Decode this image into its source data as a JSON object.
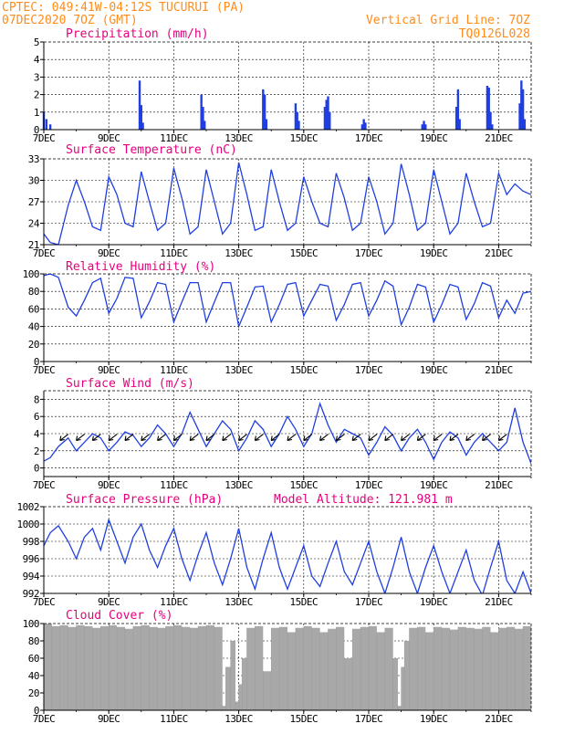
{
  "header": {
    "line1_left": "CPTEC:  049:41W-04:12S  TUCURUI (PA)",
    "line2_left": "07DEC2020 7OZ (GMT)",
    "line1_right": "Vertical Grid Line: 7OZ",
    "line2_right": "TQ0126L028",
    "colors": {
      "header": "#ff8c1a",
      "title": "#e6007e",
      "series": "#1f3fe0",
      "cloud": "#a8a8a8"
    }
  },
  "chart_data": [
    {
      "id": "precip",
      "type": "bar",
      "title": "Precipitation (mm/h)",
      "ylim": [
        0,
        5
      ],
      "yticks": [
        0,
        1,
        2,
        3,
        4,
        5
      ],
      "xlim": [
        7,
        22
      ],
      "xticks": [
        7,
        9,
        11,
        13,
        15,
        17,
        19,
        21
      ],
      "xtick_labels": [
        "7DEC",
        "9DEC",
        "11DEC",
        "13DEC",
        "15DEC",
        "17DEC",
        "19DEC",
        "21DEC"
      ],
      "x": [
        7.0,
        7.08,
        7.2,
        9.95,
        10.0,
        10.05,
        11.85,
        11.9,
        11.95,
        13.75,
        13.8,
        13.85,
        14.75,
        14.8,
        14.85,
        15.65,
        15.7,
        15.75,
        15.8,
        16.8,
        16.85,
        16.9,
        18.65,
        18.7,
        18.75,
        19.7,
        19.75,
        19.8,
        20.65,
        20.7,
        20.75,
        20.8,
        21.65,
        21.7,
        21.75,
        21.8
      ],
      "values": [
        1.0,
        0.6,
        0.3,
        2.8,
        1.4,
        0.4,
        2.0,
        1.3,
        0.5,
        2.3,
        2.0,
        0.6,
        1.5,
        1.0,
        0.5,
        1.3,
        1.7,
        1.9,
        1.0,
        0.3,
        0.6,
        0.4,
        0.3,
        0.5,
        0.3,
        1.3,
        2.3,
        0.6,
        2.5,
        2.4,
        1.0,
        0.3,
        1.5,
        2.8,
        2.3,
        0.6
      ]
    },
    {
      "id": "temp",
      "type": "line",
      "title": "Surface Temperature (nC)",
      "ylim": [
        21,
        33
      ],
      "yticks": [
        21,
        24,
        27,
        30,
        33
      ],
      "xlim": [
        7,
        22
      ],
      "xticks": [
        7,
        9,
        11,
        13,
        15,
        17,
        19,
        21
      ],
      "xtick_labels": [
        "7DEC",
        "9DEC",
        "11DEC",
        "13DEC",
        "15DEC",
        "17DEC",
        "19DEC",
        "21DEC"
      ],
      "x": [
        7.0,
        7.2,
        7.45,
        7.75,
        8.0,
        8.25,
        8.5,
        8.75,
        9.0,
        9.25,
        9.5,
        9.75,
        10.0,
        10.25,
        10.5,
        10.75,
        11.0,
        11.25,
        11.5,
        11.75,
        12.0,
        12.25,
        12.5,
        12.75,
        13.0,
        13.25,
        13.5,
        13.75,
        14.0,
        14.25,
        14.5,
        14.75,
        15.0,
        15.25,
        15.5,
        15.75,
        16.0,
        16.25,
        16.5,
        16.75,
        17.0,
        17.25,
        17.5,
        17.75,
        18.0,
        18.25,
        18.5,
        18.75,
        19.0,
        19.25,
        19.5,
        19.75,
        20.0,
        20.25,
        20.5,
        20.75,
        21.0,
        21.25,
        21.5,
        21.75,
        22.0
      ],
      "values": [
        22.5,
        21.3,
        21.0,
        26.5,
        30.0,
        27.0,
        23.5,
        23.0,
        30.5,
        28.0,
        24.0,
        23.5,
        31.2,
        27.0,
        23.0,
        24.0,
        31.7,
        27.5,
        22.5,
        23.5,
        31.5,
        27.0,
        22.5,
        24.0,
        32.5,
        28.0,
        23.0,
        23.5,
        31.5,
        27.0,
        23.0,
        24.0,
        30.5,
        27.0,
        24.0,
        23.5,
        31.0,
        27.5,
        23.0,
        24.0,
        30.5,
        27.0,
        22.5,
        24.0,
        32.3,
        28.0,
        23.0,
        24.0,
        31.5,
        27.0,
        22.5,
        24.0,
        31.0,
        27.0,
        23.5,
        24.0,
        31.0,
        28.0,
        29.5,
        28.5,
        28.0
      ]
    },
    {
      "id": "rh",
      "type": "line",
      "title": "Relative Humidity (%)",
      "ylim": [
        0,
        100
      ],
      "yticks": [
        0,
        20,
        40,
        60,
        80,
        100
      ],
      "xlim": [
        7,
        22
      ],
      "xticks": [
        7,
        9,
        11,
        13,
        15,
        17,
        19,
        21
      ],
      "xtick_labels": [
        "7DEC",
        "9DEC",
        "11DEC",
        "13DEC",
        "15DEC",
        "17DEC",
        "19DEC",
        "21DEC"
      ],
      "x": [
        7.0,
        7.2,
        7.45,
        7.75,
        8.0,
        8.25,
        8.5,
        8.75,
        9.0,
        9.25,
        9.5,
        9.75,
        10.0,
        10.25,
        10.5,
        10.75,
        11.0,
        11.25,
        11.5,
        11.75,
        12.0,
        12.25,
        12.5,
        12.75,
        13.0,
        13.25,
        13.5,
        13.75,
        14.0,
        14.25,
        14.5,
        14.75,
        15.0,
        15.25,
        15.5,
        15.75,
        16.0,
        16.25,
        16.5,
        16.75,
        17.0,
        17.25,
        17.5,
        17.75,
        18.0,
        18.25,
        18.5,
        18.75,
        19.0,
        19.25,
        19.5,
        19.75,
        20.0,
        20.25,
        20.5,
        20.75,
        21.0,
        21.25,
        21.5,
        21.75,
        22.0
      ],
      "values": [
        98,
        100,
        96,
        62,
        52,
        70,
        90,
        95,
        55,
        72,
        96,
        95,
        50,
        68,
        90,
        88,
        45,
        68,
        90,
        90,
        45,
        68,
        90,
        90,
        40,
        62,
        85,
        86,
        45,
        65,
        88,
        90,
        52,
        70,
        88,
        86,
        47,
        65,
        88,
        90,
        52,
        70,
        92,
        86,
        42,
        62,
        88,
        85,
        45,
        65,
        88,
        85,
        48,
        66,
        90,
        86,
        50,
        70,
        55,
        78,
        80
      ]
    },
    {
      "id": "wind",
      "type": "line",
      "title": "Surface Wind (m/s)",
      "ylim": [
        -1,
        9
      ],
      "yticks": [
        0,
        2,
        4,
        6,
        8
      ],
      "xlim": [
        7,
        22
      ],
      "xticks": [
        7,
        9,
        11,
        13,
        15,
        17,
        19,
        21
      ],
      "xtick_labels": [
        "7DEC",
        "9DEC",
        "11DEC",
        "13DEC",
        "15DEC",
        "17DEC",
        "19DEC",
        "21DEC"
      ],
      "x": [
        7.0,
        7.2,
        7.45,
        7.75,
        8.0,
        8.25,
        8.5,
        8.75,
        9.0,
        9.25,
        9.5,
        9.75,
        10.0,
        10.25,
        10.5,
        10.75,
        11.0,
        11.25,
        11.5,
        11.75,
        12.0,
        12.25,
        12.5,
        12.75,
        13.0,
        13.25,
        13.5,
        13.75,
        14.0,
        14.25,
        14.5,
        14.75,
        15.0,
        15.25,
        15.5,
        15.75,
        16.0,
        16.25,
        16.5,
        16.75,
        17.0,
        17.25,
        17.5,
        17.75,
        18.0,
        18.25,
        18.5,
        18.75,
        19.0,
        19.25,
        19.5,
        19.75,
        20.0,
        20.25,
        20.5,
        20.75,
        21.0,
        21.25,
        21.5,
        21.75,
        22.0
      ],
      "values": [
        0.8,
        1.2,
        2.5,
        3.5,
        2.0,
        3.0,
        4.0,
        3.5,
        2.0,
        3.0,
        4.2,
        3.8,
        2.5,
        3.5,
        5.0,
        4.0,
        2.5,
        4.0,
        6.5,
        4.5,
        2.5,
        4.0,
        5.5,
        4.5,
        2.0,
        3.5,
        5.5,
        4.5,
        2.5,
        4.0,
        6.0,
        4.5,
        2.5,
        4.0,
        7.5,
        5.0,
        3.0,
        4.5,
        4.0,
        3.5,
        1.5,
        3.0,
        4.8,
        3.8,
        2.0,
        3.5,
        4.5,
        3.0,
        1.0,
        3.0,
        4.2,
        3.5,
        1.5,
        3.0,
        4.0,
        3.0,
        2.0,
        3.0,
        7.0,
        3.0,
        0.5
      ],
      "arrow_x": [
        7.5,
        8.0,
        8.5,
        9.0,
        9.5,
        10.0,
        10.5,
        11.0,
        11.5,
        12.0,
        12.5,
        13.0,
        13.5,
        14.0,
        14.5,
        15.0,
        15.5,
        16.0,
        16.5,
        17.0,
        17.5,
        18.0,
        18.5,
        19.0,
        19.5,
        20.0,
        20.5,
        21.0
      ]
    },
    {
      "id": "pres",
      "type": "line",
      "title": "Surface Pressure (hPa)",
      "extra_text": "Model Altitude: 121.981  m",
      "ylim": [
        992,
        1002
      ],
      "yticks": [
        992,
        994,
        996,
        998,
        1000,
        1002
      ],
      "xlim": [
        7,
        22
      ],
      "xticks": [
        7,
        9,
        11,
        13,
        15,
        17,
        19,
        21
      ],
      "xtick_labels": [
        "7DEC",
        "9DEC",
        "11DEC",
        "13DEC",
        "15DEC",
        "17DEC",
        "19DEC",
        "21DEC"
      ],
      "x": [
        7.0,
        7.2,
        7.45,
        7.75,
        8.0,
        8.25,
        8.5,
        8.75,
        9.0,
        9.25,
        9.5,
        9.75,
        10.0,
        10.25,
        10.5,
        10.75,
        11.0,
        11.25,
        11.5,
        11.75,
        12.0,
        12.25,
        12.5,
        12.75,
        13.0,
        13.25,
        13.5,
        13.75,
        14.0,
        14.25,
        14.5,
        14.75,
        15.0,
        15.25,
        15.5,
        15.75,
        16.0,
        16.25,
        16.5,
        16.75,
        17.0,
        17.25,
        17.5,
        17.75,
        18.0,
        18.25,
        18.5,
        18.75,
        19.0,
        19.25,
        19.5,
        19.75,
        20.0,
        20.25,
        20.5,
        20.75,
        21.0,
        21.25,
        21.5,
        21.75,
        22.0
      ],
      "values": [
        997.5,
        999.0,
        999.8,
        998.0,
        996.0,
        998.5,
        999.5,
        997.0,
        1000.5,
        998.0,
        995.5,
        998.5,
        1000.0,
        997.0,
        995.0,
        997.5,
        999.5,
        996.0,
        993.5,
        996.5,
        999.0,
        995.5,
        993.0,
        996.0,
        999.5,
        995.0,
        992.5,
        996.0,
        999.0,
        995.0,
        992.5,
        995.0,
        997.5,
        994.0,
        992.8,
        995.5,
        998.0,
        994.5,
        993.0,
        995.5,
        998.0,
        994.5,
        992.0,
        995.0,
        998.5,
        994.5,
        992.0,
        995.0,
        997.5,
        994.5,
        992.0,
        994.5,
        997.0,
        993.5,
        991.8,
        995.0,
        998.0,
        993.5,
        992.0,
        994.5,
        992.0
      ]
    },
    {
      "id": "cloud",
      "type": "area",
      "title": "Cloud Cover (%)",
      "ylim": [
        0,
        100
      ],
      "yticks": [
        0,
        20,
        40,
        60,
        80,
        100
      ],
      "xlim": [
        7,
        22
      ],
      "xticks": [
        7,
        9,
        11,
        13,
        15,
        17,
        19,
        21
      ],
      "xtick_labels": [
        "7DEC",
        "9DEC",
        "11DEC",
        "13DEC",
        "15DEC",
        "17DEC",
        "19DEC",
        "21DEC"
      ],
      "x": [
        7.0,
        7.25,
        7.5,
        7.75,
        8.0,
        8.25,
        8.5,
        8.75,
        9.0,
        9.25,
        9.5,
        9.75,
        10.0,
        10.25,
        10.5,
        10.75,
        11.0,
        11.25,
        11.5,
        11.75,
        12.0,
        12.25,
        12.5,
        12.6,
        12.75,
        12.9,
        13.0,
        13.1,
        13.25,
        13.5,
        13.75,
        14.0,
        14.25,
        14.5,
        14.75,
        15.0,
        15.25,
        15.5,
        15.75,
        16.0,
        16.25,
        16.5,
        16.75,
        17.0,
        17.25,
        17.5,
        17.75,
        17.9,
        18.0,
        18.1,
        18.25,
        18.5,
        18.75,
        19.0,
        19.25,
        19.5,
        19.75,
        20.0,
        20.25,
        20.5,
        20.75,
        21.0,
        21.25,
        21.5,
        21.75,
        22.0
      ],
      "values": [
        100,
        97,
        98,
        96,
        98,
        97,
        95,
        97,
        98,
        96,
        94,
        97,
        98,
        96,
        95,
        97,
        98,
        96,
        95,
        97,
        98,
        96,
        5,
        50,
        80,
        10,
        30,
        60,
        95,
        97,
        45,
        95,
        96,
        90,
        95,
        97,
        95,
        90,
        94,
        96,
        60,
        94,
        96,
        97,
        90,
        95,
        60,
        5,
        50,
        80,
        95,
        96,
        90,
        96,
        95,
        93,
        96,
        95,
        94,
        96,
        90,
        95,
        96,
        94,
        97,
        96
      ]
    }
  ]
}
